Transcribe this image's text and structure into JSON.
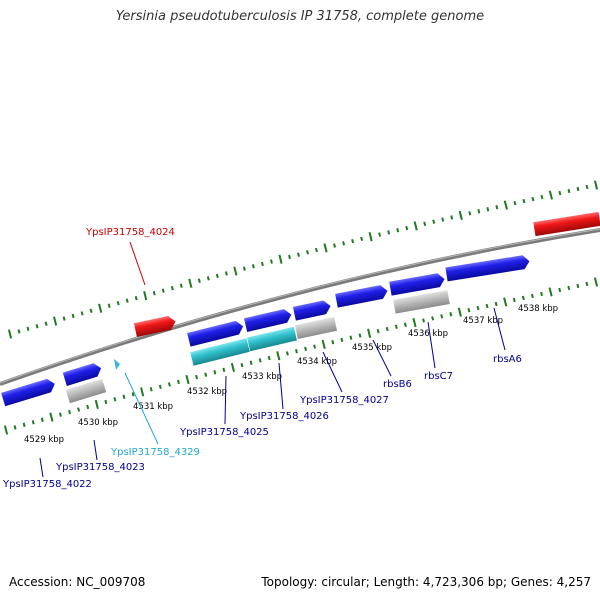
{
  "title": "Yersinia pseudotuberculosis IP 31758, complete genome",
  "footer": {
    "accession": "Accession: NC_009708",
    "topology": "Topology: circular; Length: 4,723,306 bp; Genes: 4,257"
  },
  "colors": {
    "forward_gene": "#1010d0",
    "reverse_gene": "#e01010",
    "rna": "#30b8c8",
    "pseudo": "#b8b8b8",
    "backbone": "#808080",
    "ticks": "#207a20",
    "label_blue": "#000090",
    "label_red": "#cc0000",
    "label_cyan": "#20a8d0"
  },
  "scale_ticks": [
    {
      "label": "4529 kbp"
    },
    {
      "label": "4530 kbp"
    },
    {
      "label": "4531 kbp"
    },
    {
      "label": "4532 kbp"
    },
    {
      "label": "4533 kbp"
    },
    {
      "label": "4534 kbp"
    },
    {
      "label": "4535 kbp"
    },
    {
      "label": "4536 kbp"
    },
    {
      "label": "4537 kbp"
    },
    {
      "label": "4538 kbp"
    }
  ],
  "gene_labels": [
    {
      "name": "YpsIP31758_4024",
      "color": "red"
    },
    {
      "name": "YpsIP31758_4329",
      "color": "cyan"
    },
    {
      "name": "YpsIP31758_4022",
      "color": "blue"
    },
    {
      "name": "YpsIP31758_4023",
      "color": "blue"
    },
    {
      "name": "YpsIP31758_4025",
      "color": "blue"
    },
    {
      "name": "YpsIP31758_4026",
      "color": "blue"
    },
    {
      "name": "YpsIP31758_4027",
      "color": "blue"
    },
    {
      "name": "rbsB6",
      "color": "blue"
    },
    {
      "name": "rbsC7",
      "color": "blue"
    },
    {
      "name": "rbsA6",
      "color": "blue"
    }
  ]
}
